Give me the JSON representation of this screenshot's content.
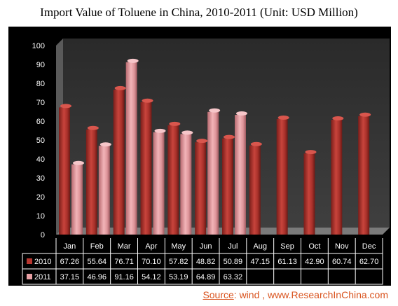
{
  "title": "Import Value of Toluene in China, 2010-2011 (Unit: USD Million)",
  "source": {
    "label": "Source",
    "text": ": wind , www.ResearchInChina.com"
  },
  "colors": {
    "series_2010": "#b8362f",
    "series_2011": "#e8a0a4",
    "background": "#000000",
    "wall": "#3a3a3a",
    "floor": "#7a7a7a",
    "text": "#ffffff"
  },
  "chart_data": {
    "type": "bar",
    "title": "Import Value of Toluene in China, 2010-2011 (Unit: USD Million)",
    "categories": [
      "Jan",
      "Feb",
      "Mar",
      "Apr",
      "May",
      "Jun",
      "Jul",
      "Aug",
      "Sep",
      "Oct",
      "Nov",
      "Dec"
    ],
    "series": [
      {
        "name": "2010",
        "values": [
          67.26,
          55.64,
          76.71,
          70.1,
          57.82,
          48.82,
          50.89,
          47.15,
          61.13,
          42.9,
          60.74,
          62.7
        ]
      },
      {
        "name": "2011",
        "values": [
          37.15,
          46.96,
          91.16,
          54.12,
          53.19,
          64.89,
          63.32,
          null,
          null,
          null,
          null,
          null
        ]
      }
    ],
    "yticks": [
      "0",
      "10",
      "20",
      "30",
      "40",
      "50",
      "60",
      "70",
      "80",
      "90",
      "100"
    ],
    "ylim": [
      0,
      100
    ],
    "table": {
      "rows": [
        {
          "label": "2010",
          "cells": [
            "67.26",
            "55.64",
            "76.71",
            "70.10",
            "57.82",
            "48.82",
            "50.89",
            "47.15",
            "61.13",
            "42.90",
            "60.74",
            "62.70"
          ]
        },
        {
          "label": "2011",
          "cells": [
            "37.15",
            "46.96",
            "91.16",
            "54.12",
            "53.19",
            "64.89",
            "63.32",
            "",
            "",
            "",
            "",
            ""
          ]
        }
      ]
    },
    "grid": false,
    "legend": "data table"
  }
}
